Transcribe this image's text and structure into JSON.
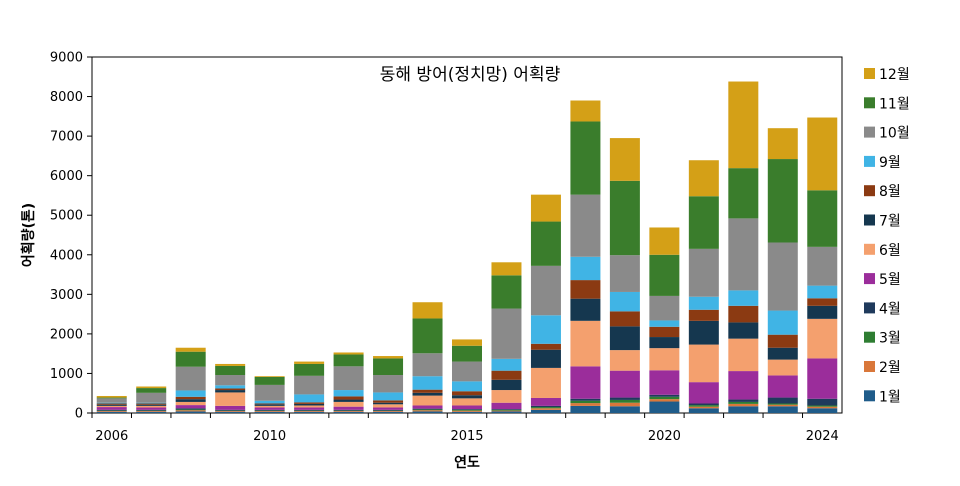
{
  "chart_data": {
    "type": "bar",
    "stacked": true,
    "title": "동해 방어(정치망) 어획량",
    "xlabel": "연도",
    "ylabel": "어획량(톤)",
    "ylim": [
      0,
      9000
    ],
    "yticks": [
      "0",
      "1000",
      "2000",
      "3000",
      "4000",
      "5000",
      "6000",
      "7000",
      "8000",
      "9000"
    ],
    "xticks": [
      {
        "label": "2006",
        "year": 2006
      },
      {
        "label": "2010",
        "year": 2010
      },
      {
        "label": "2015",
        "year": 2015
      },
      {
        "label": "2020",
        "year": 2020
      },
      {
        "label": "2024",
        "year": 2024
      }
    ],
    "categories": [
      2006,
      2007,
      2008,
      2009,
      2010,
      2011,
      2012,
      2013,
      2014,
      2015,
      2016,
      2017,
      2018,
      2019,
      2020,
      2021,
      2022,
      2023,
      2024
    ],
    "series": [
      {
        "name": "1월",
        "color": "#1f5c8a",
        "values": [
          30,
          30,
          40,
          30,
          30,
          30,
          30,
          30,
          40,
          30,
          40,
          80,
          180,
          170,
          290,
          120,
          170,
          170,
          120
        ]
      },
      {
        "name": "2월",
        "color": "#d9773a",
        "values": [
          20,
          20,
          30,
          20,
          20,
          20,
          20,
          20,
          30,
          30,
          20,
          40,
          70,
          90,
          60,
          40,
          60,
          40,
          40
        ]
      },
      {
        "name": "3월",
        "color": "#2e7d32",
        "values": [
          10,
          10,
          20,
          10,
          10,
          10,
          10,
          10,
          20,
          20,
          20,
          30,
          60,
          70,
          60,
          40,
          50,
          30,
          30
        ]
      },
      {
        "name": "4월",
        "color": "#1f3a5c",
        "values": [
          20,
          20,
          30,
          20,
          20,
          20,
          20,
          20,
          20,
          20,
          20,
          30,
          50,
          60,
          50,
          40,
          60,
          150,
          170
        ]
      },
      {
        "name": "5월",
        "color": "#9b2d9b",
        "values": [
          70,
          60,
          80,
          100,
          60,
          60,
          80,
          60,
          80,
          90,
          160,
          200,
          820,
          680,
          620,
          540,
          720,
          560,
          1020
        ]
      },
      {
        "name": "6월",
        "color": "#f4a06e",
        "values": [
          30,
          40,
          80,
          340,
          40,
          50,
          120,
          80,
          250,
          180,
          320,
          760,
          1150,
          520,
          560,
          950,
          820,
          400,
          1000
        ]
      },
      {
        "name": "7월",
        "color": "#15374f",
        "values": [
          30,
          30,
          70,
          60,
          40,
          40,
          60,
          40,
          70,
          80,
          260,
          460,
          560,
          600,
          280,
          600,
          410,
          300,
          330
        ]
      },
      {
        "name": "8월",
        "color": "#8b3a12",
        "values": [
          30,
          30,
          60,
          40,
          20,
          40,
          80,
          60,
          80,
          100,
          230,
          150,
          470,
          380,
          260,
          280,
          420,
          330,
          190
        ]
      },
      {
        "name": "9월",
        "color": "#40b4e5",
        "values": [
          20,
          20,
          160,
          80,
          70,
          200,
          160,
          200,
          340,
          250,
          300,
          720,
          590,
          490,
          160,
          330,
          390,
          610,
          320
        ]
      },
      {
        "name": "10월",
        "color": "#8a8a8a",
        "values": [
          110,
          250,
          600,
          260,
          400,
          470,
          600,
          440,
          580,
          500,
          1270,
          1250,
          1570,
          930,
          620,
          1210,
          1820,
          1720,
          980
        ]
      },
      {
        "name": "11월",
        "color": "#3a7d2c",
        "values": [
          20,
          120,
          380,
          230,
          200,
          300,
          300,
          420,
          880,
          400,
          840,
          1120,
          1850,
          1880,
          1040,
          1330,
          1270,
          2110,
          1430
        ]
      },
      {
        "name": "12월",
        "color": "#d4a017",
        "values": [
          40,
          40,
          100,
          50,
          20,
          60,
          50,
          60,
          410,
          160,
          330,
          680,
          530,
          1080,
          690,
          910,
          2190,
          780,
          1840
        ]
      }
    ]
  }
}
